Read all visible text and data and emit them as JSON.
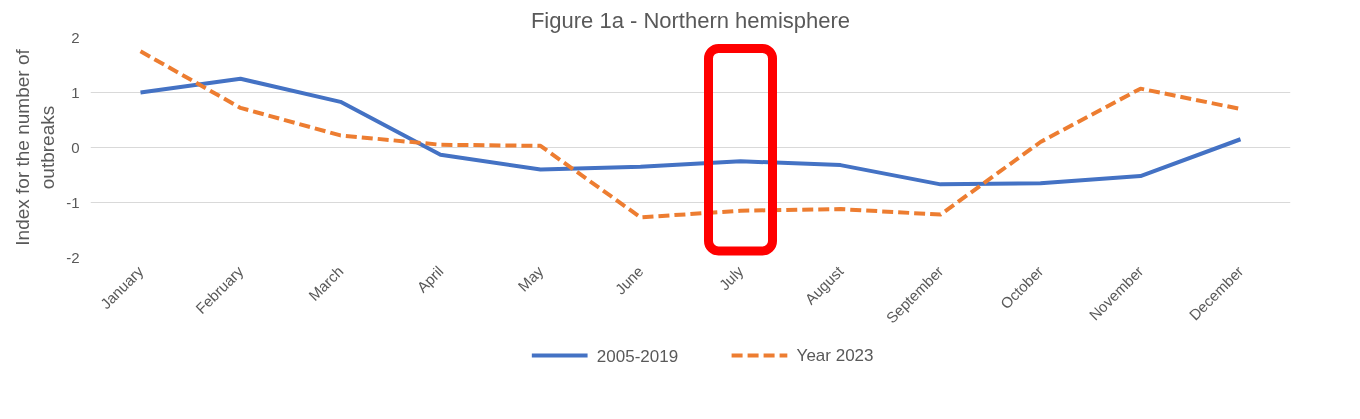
{
  "chart_data": {
    "type": "line",
    "title": "Figure 1a - Northern hemisphere",
    "ylabel": "Index for the number of outbreaks",
    "categories": [
      "January",
      "February",
      "March",
      "April",
      "May",
      "June",
      "July",
      "August",
      "September",
      "October",
      "November",
      "December"
    ],
    "series": [
      {
        "name": "2005-2019",
        "color": "#4472c4",
        "line_style": "solid",
        "values": [
          1.0,
          1.25,
          0.83,
          -0.13,
          -0.4,
          -0.35,
          -0.25,
          -0.32,
          -0.67,
          -0.65,
          -0.52,
          0.15
        ]
      },
      {
        "name": "Year 2023",
        "color": "#ed7d31",
        "line_style": "dashed",
        "values": [
          1.75,
          0.72,
          0.22,
          0.05,
          0.03,
          -1.27,
          -1.15,
          -1.12,
          -1.22,
          0.1,
          1.07,
          0.7
        ]
      }
    ],
    "ylim": [
      -2,
      2
    ],
    "yticks": [
      -2,
      -1,
      0,
      1,
      2
    ],
    "grid": "y",
    "legend": "bottom"
  }
}
